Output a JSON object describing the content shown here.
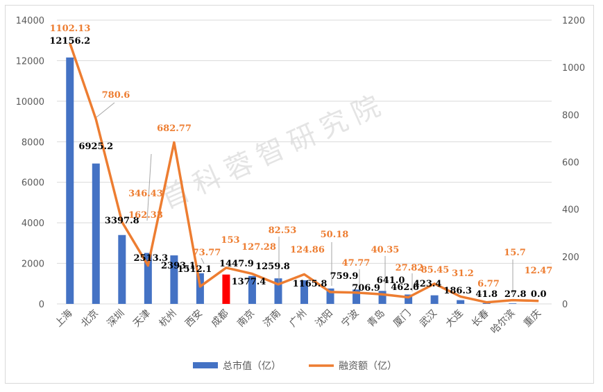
{
  "chart_data": {
    "type": "bar+line",
    "categories": [
      "上海",
      "北京",
      "深圳",
      "天津",
      "杭州",
      "西安",
      "成都",
      "南京",
      "济南",
      "广州",
      "沈阳",
      "宁波",
      "青岛",
      "厦门",
      "武汉",
      "大连",
      "长春",
      "哈尔滨",
      "重庆"
    ],
    "series": [
      {
        "name": "总市值（亿）",
        "type": "bar",
        "axis": "left",
        "values": [
          12156.2,
          6925.2,
          3397.8,
          2513.3,
          2393.1,
          1512.1,
          1447.9,
          1377.4,
          1259.8,
          1165.8,
          759.9,
          706.9,
          641.0,
          462.6,
          423.4,
          186.3,
          41.8,
          27.8,
          0.0
        ],
        "labels": [
          "12156.2",
          "6925.2",
          "3397.8",
          "2513.3",
          "2393.1",
          "1512.1",
          "1447.9",
          "1377.4",
          "1259.8",
          "1165.8",
          "759.9",
          "706.9",
          "641.0",
          "462.6",
          "423.4",
          "186.3",
          "41.8",
          "27.8",
          "0.0"
        ]
      },
      {
        "name": "融资额（亿）",
        "type": "line",
        "axis": "right",
        "values": [
          1102.13,
          780.6,
          346.43,
          162.33,
          682.77,
          73.77,
          153,
          127.28,
          82.53,
          124.86,
          50.18,
          47.77,
          40.35,
          27.82,
          85.45,
          31.2,
          6.77,
          15.7,
          12.47
        ],
        "labels": [
          "1102.13",
          "780.6",
          "346.43",
          "162.33",
          "682.77",
          "73.77",
          "153",
          "127.28",
          "82.53",
          "124.86",
          "50.18",
          "47.77",
          "40.35",
          "27.82",
          "85.45",
          "31.2",
          "6.77",
          "15.7",
          "12.47"
        ]
      }
    ],
    "highlight_category": "成都",
    "y_left": {
      "min": 0,
      "max": 14000,
      "step": 2000,
      "ticks": [
        "0",
        "2000",
        "4000",
        "6000",
        "8000",
        "10000",
        "12000",
        "14000"
      ]
    },
    "y_right": {
      "min": 0,
      "max": 1200,
      "step": 200,
      "ticks": [
        "0",
        "200",
        "400",
        "600",
        "800",
        "1000",
        "1200"
      ]
    },
    "grid": true,
    "legend_position": "bottom",
    "watermark": "首科蓉智研究院"
  },
  "colors": {
    "bar": "#4472c4",
    "highlight": "#ff0000",
    "line": "#ed7d31",
    "grid": "#d9d9d9",
    "axis_text": "#595959"
  },
  "legend": {
    "bar_label": "总市值（亿）",
    "line_label": "融资额（亿）"
  }
}
